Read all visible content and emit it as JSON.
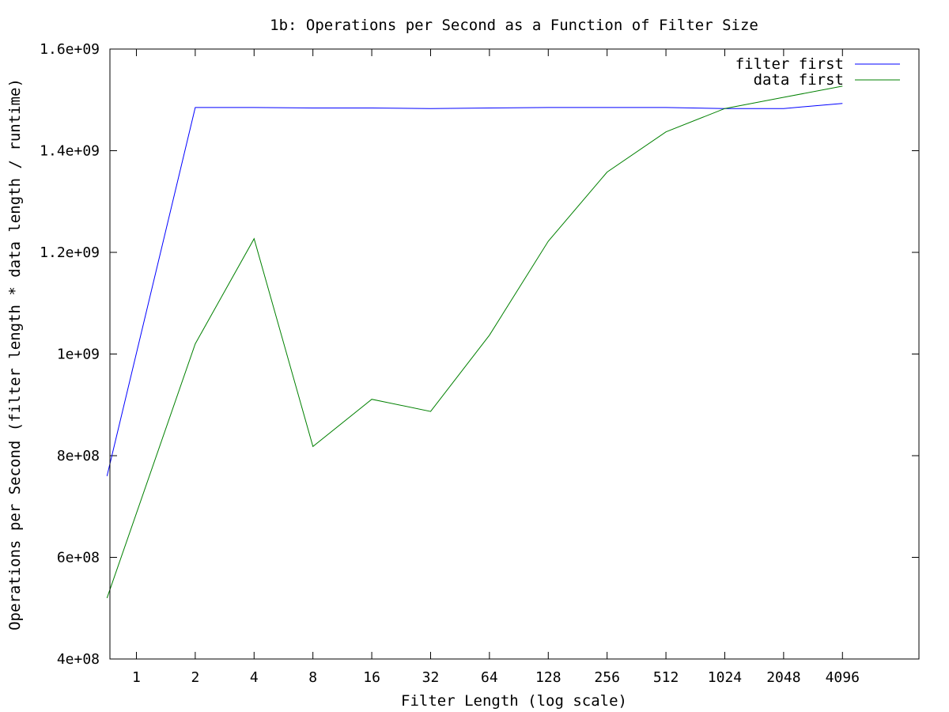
{
  "chart_data": {
    "type": "line",
    "title": "1b: Operations per Second as a Function of Filter Size",
    "xlabel": "Filter Length (log scale)",
    "ylabel": "Operations per Second (filter length * data length / runtime)",
    "x_scale": "log2",
    "x_ticks": [
      1,
      2,
      4,
      8,
      16,
      32,
      64,
      128,
      256,
      512,
      1024,
      2048,
      4096
    ],
    "x_tick_labels": [
      "1",
      "2",
      "4",
      "8",
      "16",
      "32",
      "64",
      "128",
      "256",
      "512",
      "1024",
      "2048",
      "4096"
    ],
    "xlim_exponent": [
      -0.45,
      13.3
    ],
    "ylim": [
      400000000,
      1600000000
    ],
    "y_ticks": [
      400000000,
      600000000,
      800000000,
      1000000000,
      1200000000,
      1400000000,
      1600000000
    ],
    "y_tick_labels": [
      "4e+08",
      "6e+08",
      "8e+08",
      "1e+09",
      "1.2e+09",
      "1.4e+09",
      "1.6e+09"
    ],
    "legend_position": "top-right",
    "grid": false,
    "x": [
      0.707,
      2,
      4,
      8,
      16,
      32,
      64,
      128,
      256,
      512,
      1024,
      2048,
      4096
    ],
    "series": [
      {
        "name": "filter first",
        "color": "#0000ff",
        "values": [
          760000000,
          1485000000,
          1485000000,
          1484000000,
          1484000000,
          1483000000,
          1484000000,
          1485000000,
          1485000000,
          1485000000,
          1483000000,
          1483000000,
          1493000000
        ]
      },
      {
        "name": "data first",
        "color": "#008000",
        "values": [
          520000000,
          1020000000,
          1227000000,
          818000000,
          911000000,
          887000000,
          1037000000,
          1222000000,
          1358000000,
          1437000000,
          1483000000,
          1505000000,
          1527000000
        ]
      }
    ]
  }
}
